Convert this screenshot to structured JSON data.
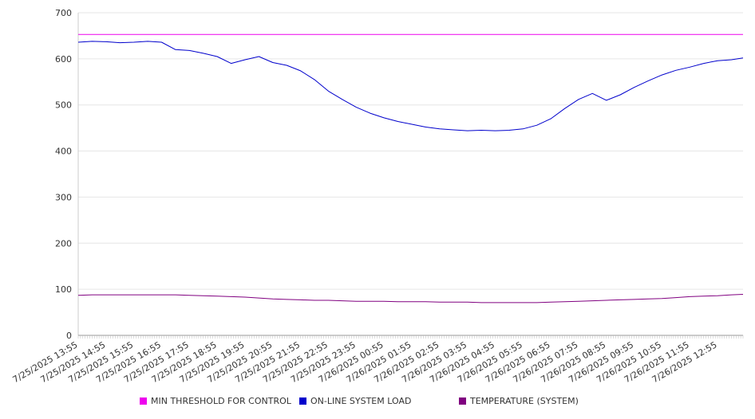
{
  "chart_data": {
    "type": "line",
    "title": "",
    "xlabel": "",
    "ylabel": "",
    "ylim": [
      0,
      700
    ],
    "yticks": [
      0,
      100,
      200,
      300,
      400,
      500,
      600,
      700
    ],
    "grid": true,
    "legend_position": "bottom",
    "x_tick_labels": [
      "7/25/2025 13:55",
      "7/25/2025 14:55",
      "7/25/2025 15:55",
      "7/25/2025 16:55",
      "7/25/2025 17:55",
      "7/25/2025 18:55",
      "7/25/2025 19:55",
      "7/25/2025 20:55",
      "7/25/2025 21:55",
      "7/25/2025 22:55",
      "7/25/2025 23:55",
      "7/26/2025 00:55",
      "7/26/2025 01:55",
      "7/26/2025 02:55",
      "7/26/2025 03:55",
      "7/26/2025 04:55",
      "7/26/2025 05:55",
      "7/26/2025 06:55",
      "7/26/2025 07:55",
      "7/26/2025 08:55",
      "7/26/2025 09:55",
      "7/26/2025 10:55",
      "7/26/2025 11:55",
      "7/26/2025 12:55"
    ],
    "x": [
      "7/25/2025 13:55",
      "7/25/2025 14:25",
      "7/25/2025 14:55",
      "7/25/2025 15:25",
      "7/25/2025 15:55",
      "7/25/2025 16:25",
      "7/25/2025 16:55",
      "7/25/2025 17:25",
      "7/25/2025 17:55",
      "7/25/2025 18:25",
      "7/25/2025 18:55",
      "7/25/2025 19:25",
      "7/25/2025 19:55",
      "7/25/2025 20:25",
      "7/25/2025 20:55",
      "7/25/2025 21:25",
      "7/25/2025 21:55",
      "7/25/2025 22:25",
      "7/25/2025 22:55",
      "7/25/2025 23:25",
      "7/25/2025 23:55",
      "7/26/2025 00:25",
      "7/26/2025 00:55",
      "7/26/2025 01:25",
      "7/26/2025 01:55",
      "7/26/2025 02:25",
      "7/26/2025 02:55",
      "7/26/2025 03:25",
      "7/26/2025 03:55",
      "7/26/2025 04:25",
      "7/26/2025 04:55",
      "7/26/2025 05:25",
      "7/26/2025 05:55",
      "7/26/2025 06:25",
      "7/26/2025 06:55",
      "7/26/2025 07:25",
      "7/26/2025 07:55",
      "7/26/2025 08:25",
      "7/26/2025 08:55",
      "7/26/2025 09:25",
      "7/26/2025 09:55",
      "7/26/2025 10:25",
      "7/26/2025 10:55",
      "7/26/2025 11:25",
      "7/26/2025 11:55",
      "7/26/2025 12:25",
      "7/26/2025 12:55",
      "7/26/2025 13:25",
      "7/26/2025 13:50"
    ],
    "series": [
      {
        "name": "MIN THRESHOLD FOR CONTROL",
        "color": "#ee00ee",
        "values": [
          653,
          653,
          653,
          653,
          653,
          653,
          653,
          653,
          653,
          653,
          653,
          653,
          653,
          653,
          653,
          653,
          653,
          653,
          653,
          653,
          653,
          653,
          653,
          653,
          653,
          653,
          653,
          653,
          653,
          653,
          653,
          653,
          653,
          653,
          653,
          653,
          653,
          653,
          653,
          653,
          653,
          653,
          653,
          653,
          653,
          653,
          653,
          653,
          653
        ]
      },
      {
        "name": "ON-LINE SYSTEM LOAD",
        "color": "#0000cc",
        "values": [
          636,
          638,
          637,
          635,
          636,
          638,
          636,
          620,
          618,
          612,
          605,
          590,
          598,
          605,
          592,
          586,
          574,
          555,
          530,
          512,
          495,
          482,
          472,
          464,
          458,
          452,
          448,
          446,
          444,
          445,
          444,
          445,
          448,
          456,
          470,
          492,
          512,
          525,
          510,
          522,
          538,
          552,
          565,
          575,
          582,
          590,
          596,
          598,
          602
        ]
      },
      {
        "name": "TEMPERATURE (SYSTEM)",
        "color": "#800080",
        "values": [
          87,
          88,
          88,
          88,
          88,
          88,
          88,
          88,
          87,
          86,
          85,
          84,
          83,
          81,
          79,
          78,
          77,
          76,
          76,
          75,
          74,
          74,
          74,
          73,
          73,
          73,
          72,
          72,
          72,
          71,
          71,
          71,
          71,
          71,
          72,
          73,
          74,
          75,
          76,
          77,
          78,
          79,
          80,
          82,
          84,
          85,
          86,
          88,
          89
        ]
      }
    ]
  }
}
